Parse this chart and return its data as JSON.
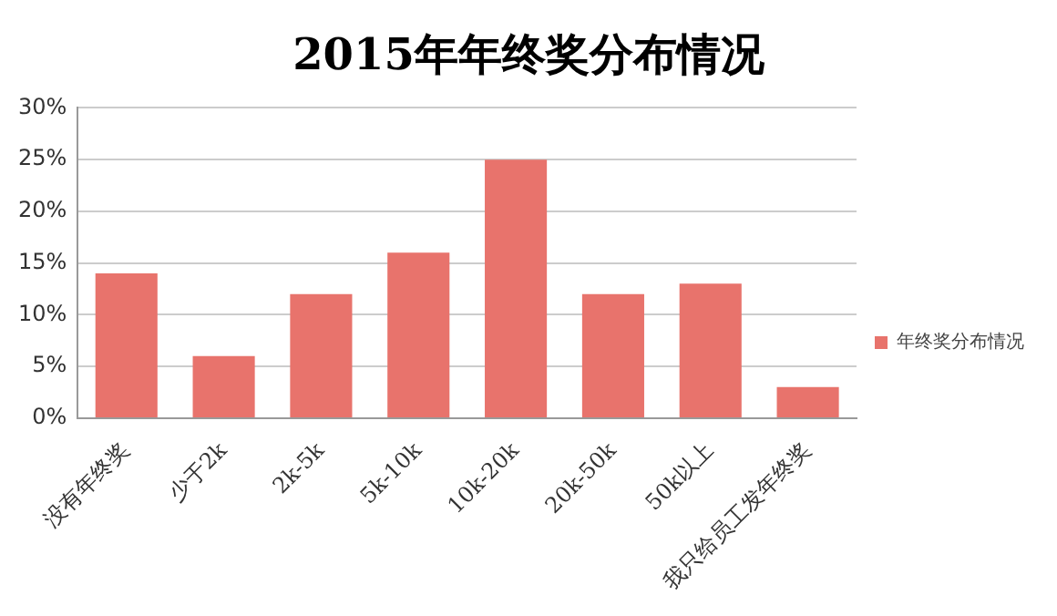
{
  "chart_data": {
    "type": "bar",
    "title": "2015年年终奖分布情况",
    "categories": [
      "没有年终奖",
      "少于2k",
      "2k-5k",
      "5k-10k",
      "10k-20k",
      "20k-50k",
      "50k以上",
      "我只给员工发年终奖"
    ],
    "series": [
      {
        "name": "年终奖分布情况",
        "color": "#e8736c",
        "values": [
          14,
          6,
          12,
          16,
          25,
          12,
          13,
          3
        ]
      }
    ],
    "ylim": [
      0,
      30
    ],
    "yticks": [
      {
        "value": 0,
        "label": "0%"
      },
      {
        "value": 5,
        "label": "5%"
      },
      {
        "value": 10,
        "label": "10%"
      },
      {
        "value": 15,
        "label": "15%"
      },
      {
        "value": 20,
        "label": "20%"
      },
      {
        "value": 25,
        "label": "25%"
      },
      {
        "value": 30,
        "label": "30%"
      }
    ],
    "grid": "y",
    "legend": "right"
  }
}
